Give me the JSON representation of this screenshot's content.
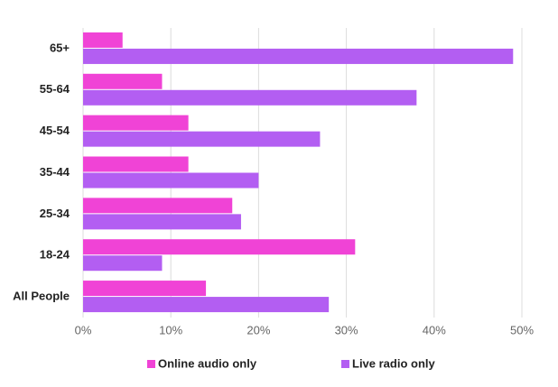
{
  "chart_data": {
    "type": "hbar",
    "categories": [
      "65+",
      "55-64",
      "45-54",
      "35-44",
      "25-34",
      "18-24",
      "All People"
    ],
    "series": [
      {
        "name": "Online audio only",
        "color": "#f043d6",
        "values": [
          4.5,
          9,
          12,
          12,
          17,
          31,
          14
        ]
      },
      {
        "name": "Live radio only",
        "color": "#b35ef2",
        "values": [
          49,
          38,
          27,
          20,
          18,
          9,
          28
        ]
      }
    ],
    "xlim": [
      0,
      50
    ],
    "xticks": [
      {
        "value": 0,
        "label": "0%"
      },
      {
        "value": 10,
        "label": "10%"
      },
      {
        "value": 20,
        "label": "20%"
      },
      {
        "value": 30,
        "label": "30%"
      },
      {
        "value": 40,
        "label": "40%"
      },
      {
        "value": 50,
        "label": "50%"
      }
    ],
    "grid": true
  }
}
